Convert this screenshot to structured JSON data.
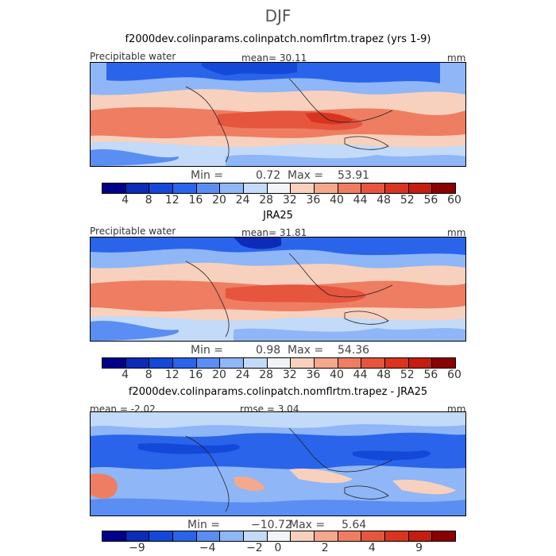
{
  "season": "DJF",
  "palette": [
    "#00008b",
    "#0b2bb8",
    "#1448d8",
    "#2a64ea",
    "#5a8ef2",
    "#8fb6f6",
    "#c3daf9",
    "#f2f3f6",
    "#f7d1bd",
    "#f4a88c",
    "#ee7d62",
    "#e6553e",
    "#d93420",
    "#c31e10",
    "#8b0000"
  ],
  "panels": [
    {
      "title": "f2000dev.colinparams.colinpatch.nomflrtm.trapez (yrs 1-9)",
      "label_left": "Precipitable water",
      "label_mid": "mean=   30.11",
      "unit": "mm",
      "min_label": "Min =",
      "min_value": "0.72",
      "max_label": "Max =",
      "max_value": "53.91",
      "colorbar_ticks": [
        "4",
        "8",
        "12",
        "16",
        "20",
        "24",
        "28",
        "32",
        "36",
        "40",
        "44",
        "48",
        "52",
        "56",
        "60"
      ]
    },
    {
      "title": "JRA25",
      "label_left": "Precipitable water",
      "label_mid": "mean=   31.81",
      "unit": "mm",
      "min_label": "Min =",
      "min_value": "0.98",
      "max_label": "Max =",
      "max_value": "54.36",
      "colorbar_ticks": [
        "4",
        "8",
        "12",
        "16",
        "20",
        "24",
        "28",
        "32",
        "36",
        "40",
        "44",
        "48",
        "52",
        "56",
        "60"
      ]
    },
    {
      "title": "f2000dev.colinparams.colinpatch.nomflrtm.trapez - JRA25",
      "label_left": "mean =   -2.02",
      "label_mid": "rmse =    3.04",
      "unit": "mm",
      "min_label": "Min =",
      "min_value": "−10.72",
      "max_label": "Max =",
      "max_value": "5.64",
      "colorbar_ticks": [
        "−9",
        "−4",
        "−2",
        "0",
        "2",
        "4",
        "9"
      ]
    }
  ]
}
